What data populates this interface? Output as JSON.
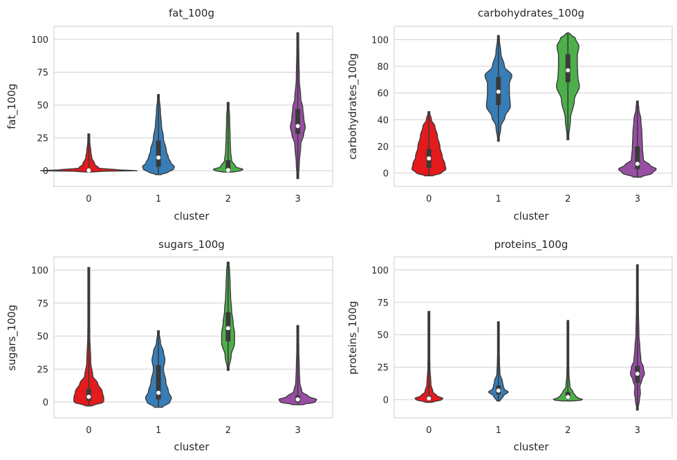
{
  "colors": {
    "cluster_0": "#e41a1c",
    "cluster_1": "#377eb8",
    "cluster_2": "#4daf4a",
    "cluster_3": "#984ea3",
    "outline": "#3a3a3a",
    "grid": "#d0d0d0",
    "frame": "#cccccc"
  },
  "chart_data": [
    {
      "type": "violin",
      "title": "fat_100g",
      "xlabel": "cluster",
      "ylabel": "fat_100g",
      "categories": [
        "0",
        "1",
        "2",
        "3"
      ],
      "yticks": [
        0,
        25,
        50,
        75,
        100
      ],
      "ytick_labels": [
        "0",
        "25",
        "50",
        "75",
        "100"
      ],
      "ylim": [
        -12,
        110
      ],
      "grid": true,
      "series": [
        {
          "category": "0",
          "min": -1,
          "max": 28,
          "q1": 0,
          "median": 0.3,
          "q3": 1.5,
          "profile": [
            [
              -1,
              0.05
            ],
            [
              -0.3,
              0.32
            ],
            [
              0,
              1.0
            ],
            [
              0.6,
              0.6
            ],
            [
              2,
              0.2
            ],
            [
              5,
              0.12
            ],
            [
              10,
              0.06
            ],
            [
              15,
              0.04
            ],
            [
              22,
              0.02
            ],
            [
              28,
              0.01
            ]
          ]
        },
        {
          "category": "1",
          "min": -3,
          "max": 58,
          "q1": 3,
          "median": 10,
          "q3": 23,
          "profile": [
            [
              -3,
              0.05
            ],
            [
              -1,
              0.2
            ],
            [
              1,
              0.3
            ],
            [
              3,
              0.32
            ],
            [
              6,
              0.25
            ],
            [
              10,
              0.2
            ],
            [
              15,
              0.16
            ],
            [
              25,
              0.1
            ],
            [
              35,
              0.06
            ],
            [
              45,
              0.04
            ],
            [
              58,
              0.01
            ]
          ]
        },
        {
          "category": "2",
          "min": -1,
          "max": 52,
          "q1": 0,
          "median": 0.5,
          "q3": 8,
          "profile": [
            [
              -1,
              0.1
            ],
            [
              0,
              0.26
            ],
            [
              1,
              0.3
            ],
            [
              3,
              0.15
            ],
            [
              8,
              0.07
            ],
            [
              15,
              0.05
            ],
            [
              25,
              0.04
            ],
            [
              40,
              0.03
            ],
            [
              52,
              0.01
            ]
          ]
        },
        {
          "category": "3",
          "min": -6,
          "max": 105,
          "q1": 28,
          "median": 34,
          "q3": 47,
          "profile": [
            [
              -6,
              0.01
            ],
            [
              5,
              0.03
            ],
            [
              20,
              0.06
            ],
            [
              28,
              0.12
            ],
            [
              33,
              0.15
            ],
            [
              40,
              0.12
            ],
            [
              48,
              0.1
            ],
            [
              55,
              0.06
            ],
            [
              70,
              0.03
            ],
            [
              90,
              0.02
            ],
            [
              105,
              0.01
            ]
          ]
        }
      ]
    },
    {
      "type": "violin",
      "title": "carbohydrates_100g",
      "xlabel": "cluster",
      "ylabel": "carbohydrates_100g",
      "categories": [
        "0",
        "1",
        "2",
        "3"
      ],
      "yticks": [
        0,
        20,
        40,
        60,
        80,
        100
      ],
      "ytick_labels": [
        "0",
        "20",
        "40",
        "60",
        "80",
        "100"
      ],
      "ylim": [
        -10,
        110
      ],
      "grid": true,
      "series": [
        {
          "category": "0",
          "min": -2,
          "max": 46,
          "q1": 4,
          "median": 11,
          "q3": 18,
          "profile": [
            [
              -2,
              0.08
            ],
            [
              0,
              0.25
            ],
            [
              3,
              0.34
            ],
            [
              7,
              0.32
            ],
            [
              12,
              0.27
            ],
            [
              20,
              0.22
            ],
            [
              28,
              0.17
            ],
            [
              35,
              0.12
            ],
            [
              40,
              0.05
            ],
            [
              46,
              0.01
            ]
          ]
        },
        {
          "category": "1",
          "min": 24,
          "max": 103,
          "q1": 51,
          "median": 61,
          "q3": 72,
          "profile": [
            [
              24,
              0.01
            ],
            [
              35,
              0.05
            ],
            [
              42,
              0.13
            ],
            [
              50,
              0.24
            ],
            [
              60,
              0.22
            ],
            [
              67,
              0.22
            ],
            [
              73,
              0.27
            ],
            [
              80,
              0.12
            ],
            [
              90,
              0.05
            ],
            [
              100,
              0.02
            ],
            [
              103,
              0.01
            ]
          ]
        },
        {
          "category": "2",
          "min": 25,
          "max": 105,
          "q1": 68,
          "median": 77,
          "q3": 89,
          "profile": [
            [
              25,
              0.01
            ],
            [
              40,
              0.05
            ],
            [
              55,
              0.13
            ],
            [
              65,
              0.23
            ],
            [
              72,
              0.2
            ],
            [
              80,
              0.19
            ],
            [
              88,
              0.19
            ],
            [
              95,
              0.22
            ],
            [
              101,
              0.15
            ],
            [
              104,
              0.05
            ],
            [
              105,
              0.01
            ]
          ]
        },
        {
          "category": "3",
          "min": -3,
          "max": 54,
          "q1": 3,
          "median": 7,
          "q3": 20,
          "profile": [
            [
              -3,
              0.08
            ],
            [
              0,
              0.3
            ],
            [
              3,
              0.38
            ],
            [
              6,
              0.25
            ],
            [
              10,
              0.12
            ],
            [
              20,
              0.1
            ],
            [
              30,
              0.09
            ],
            [
              40,
              0.07
            ],
            [
              48,
              0.03
            ],
            [
              54,
              0.01
            ]
          ]
        }
      ]
    },
    {
      "type": "violin",
      "title": "sugars_100g",
      "xlabel": "cluster",
      "ylabel": "sugars_100g",
      "categories": [
        "0",
        "1",
        "2",
        "3"
      ],
      "yticks": [
        0,
        25,
        50,
        75,
        100
      ],
      "ytick_labels": [
        "0",
        "25",
        "50",
        "75",
        "100"
      ],
      "ylim": [
        -12,
        110
      ],
      "grid": true,
      "series": [
        {
          "category": "0",
          "min": -3,
          "max": 102,
          "q1": 1,
          "median": 4,
          "q3": 10,
          "profile": [
            [
              -3,
              0.05
            ],
            [
              0,
              0.3
            ],
            [
              3,
              0.3
            ],
            [
              8,
              0.27
            ],
            [
              14,
              0.18
            ],
            [
              20,
              0.08
            ],
            [
              30,
              0.04
            ],
            [
              50,
              0.02
            ],
            [
              80,
              0.01
            ],
            [
              102,
              0.005
            ]
          ]
        },
        {
          "category": "1",
          "min": -4,
          "max": 54,
          "q1": 2,
          "median": 7,
          "q3": 28,
          "profile": [
            [
              -4,
              0.08
            ],
            [
              0,
              0.23
            ],
            [
              3,
              0.26
            ],
            [
              8,
              0.2
            ],
            [
              15,
              0.15
            ],
            [
              25,
              0.1
            ],
            [
              32,
              0.13
            ],
            [
              38,
              0.1
            ],
            [
              45,
              0.04
            ],
            [
              54,
              0.01
            ]
          ]
        },
        {
          "category": "2",
          "min": 24,
          "max": 106,
          "q1": 46,
          "median": 56,
          "q3": 68,
          "profile": [
            [
              24,
              0.01
            ],
            [
              35,
              0.06
            ],
            [
              45,
              0.13
            ],
            [
              52,
              0.13
            ],
            [
              60,
              0.1
            ],
            [
              70,
              0.07
            ],
            [
              80,
              0.05
            ],
            [
              90,
              0.04
            ],
            [
              100,
              0.03
            ],
            [
              106,
              0.01
            ]
          ]
        },
        {
          "category": "3",
          "min": -2,
          "max": 58,
          "q1": 0,
          "median": 2,
          "q3": 5,
          "profile": [
            [
              -2,
              0.1
            ],
            [
              0,
              0.35
            ],
            [
              2,
              0.38
            ],
            [
              4,
              0.22
            ],
            [
              8,
              0.08
            ],
            [
              15,
              0.04
            ],
            [
              25,
              0.03
            ],
            [
              40,
              0.02
            ],
            [
              58,
              0.01
            ]
          ]
        }
      ]
    },
    {
      "type": "violin",
      "title": "proteins_100g",
      "xlabel": "cluster",
      "ylabel": "proteins_100g",
      "categories": [
        "0",
        "1",
        "2",
        "3"
      ],
      "yticks": [
        0,
        25,
        50,
        75,
        100
      ],
      "ytick_labels": [
        "0",
        "25",
        "50",
        "75",
        "100"
      ],
      "ylim": [
        -14,
        110
      ],
      "grid": true,
      "series": [
        {
          "category": "0",
          "min": -2,
          "max": 68,
          "q1": 0,
          "median": 1,
          "q3": 3,
          "profile": [
            [
              -2,
              0.06
            ],
            [
              0,
              0.26
            ],
            [
              1,
              0.28
            ],
            [
              3,
              0.16
            ],
            [
              6,
              0.08
            ],
            [
              12,
              0.04
            ],
            [
              25,
              0.02
            ],
            [
              45,
              0.01
            ],
            [
              68,
              0.005
            ]
          ]
        },
        {
          "category": "1",
          "min": -1,
          "max": 60,
          "q1": 4,
          "median": 7,
          "q3": 11,
          "profile": [
            [
              -1,
              0.03
            ],
            [
              3,
              0.1
            ],
            [
              6,
              0.2
            ],
            [
              8,
              0.12
            ],
            [
              10,
              0.1
            ],
            [
              14,
              0.08
            ],
            [
              20,
              0.03
            ],
            [
              30,
              0.02
            ],
            [
              45,
              0.01
            ],
            [
              60,
              0.005
            ]
          ]
        },
        {
          "category": "2",
          "min": -1,
          "max": 61,
          "q1": 1,
          "median": 2,
          "q3": 6,
          "profile": [
            [
              -1,
              0.1
            ],
            [
              0,
              0.32
            ],
            [
              1,
              0.22
            ],
            [
              3,
              0.15
            ],
            [
              6,
              0.1
            ],
            [
              10,
              0.04
            ],
            [
              20,
              0.02
            ],
            [
              40,
              0.01
            ],
            [
              61,
              0.005
            ]
          ]
        },
        {
          "category": "3",
          "min": -8,
          "max": 104,
          "q1": 13,
          "median": 20,
          "q3": 26,
          "profile": [
            [
              -8,
              0.01
            ],
            [
              0,
              0.04
            ],
            [
              5,
              0.06
            ],
            [
              10,
              0.05
            ],
            [
              15,
              0.09
            ],
            [
              20,
              0.14
            ],
            [
              25,
              0.12
            ],
            [
              30,
              0.07
            ],
            [
              40,
              0.05
            ],
            [
              50,
              0.03
            ],
            [
              70,
              0.02
            ],
            [
              104,
              0.01
            ]
          ]
        }
      ]
    }
  ]
}
